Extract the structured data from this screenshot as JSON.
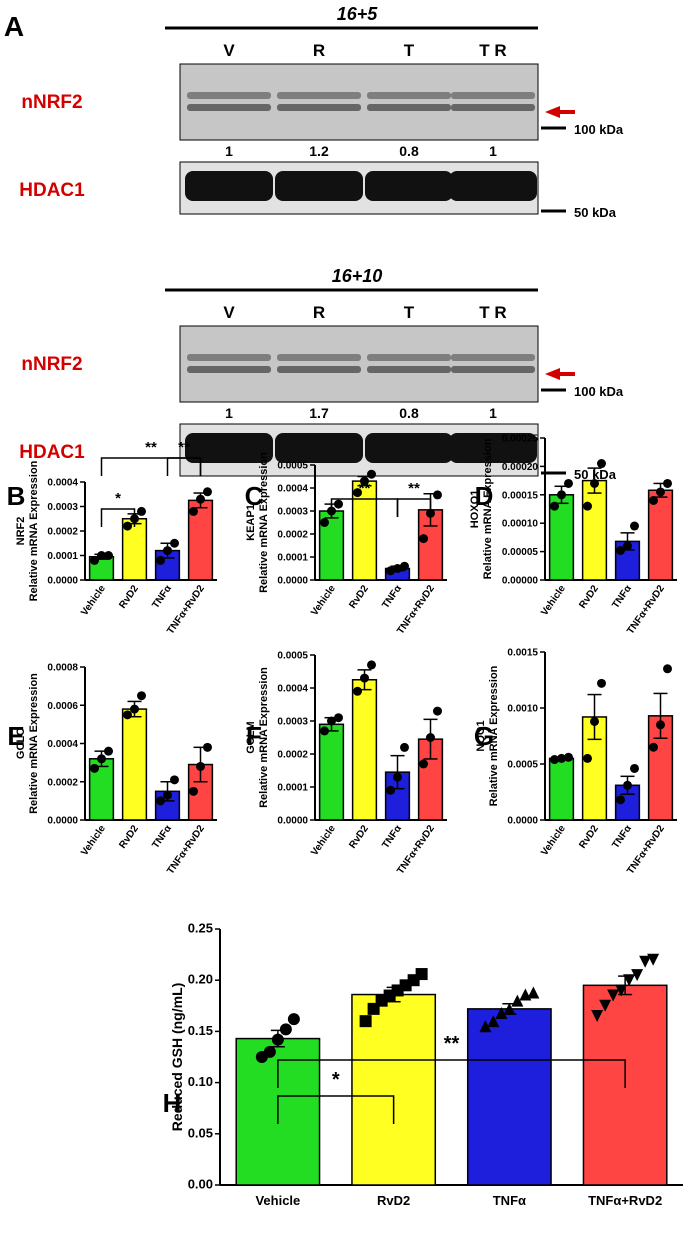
{
  "panel_a": {
    "letter": "A",
    "blocks": [
      {
        "condition": "16+5",
        "lanes": [
          "V",
          "R",
          "T",
          "T R"
        ],
        "target_label": "nNRF2",
        "ratios": [
          "1",
          "1.2",
          "0.8",
          "1"
        ],
        "loading_label": "HDAC1",
        "marker_target": "100 kDa",
        "marker_loading": "50 kDa"
      },
      {
        "condition": "16+10",
        "lanes": [
          "V",
          "R",
          "T",
          "T R"
        ],
        "target_label": "nNRF2",
        "ratios": [
          "1",
          "1.7",
          "0.8",
          "1"
        ],
        "loading_label": "HDAC1",
        "marker_target": "100 kDa",
        "marker_loading": "50 kDa"
      }
    ],
    "arrow_color": "#d40000"
  },
  "colors": {
    "label_red": "#d40000",
    "bar_colors": [
      "#22dd22",
      "#ffff22",
      "#1e1edd",
      "#ff4444"
    ]
  },
  "chart_data": [
    {
      "type": "bar",
      "panel": "B",
      "ylabel_gene": "NRF2",
      "ylabel": "Relative mRNA Expression",
      "categories": [
        "Vehicle",
        "RvD2",
        "TNFα",
        "TNFα+RvD2"
      ],
      "values": [
        9.5e-05,
        0.00025,
        0.00012,
        0.000325
      ],
      "errors": [
        1e-05,
        2e-05,
        3e-05,
        3e-05
      ],
      "points": [
        [
          8e-05,
          0.0001,
          0.0001
        ],
        [
          0.00022,
          0.00025,
          0.00028
        ],
        [
          8e-05,
          0.00012,
          0.00015
        ],
        [
          0.00028,
          0.00033,
          0.00036
        ]
      ],
      "ylim": [
        0,
        0.0004
      ],
      "ticks": [
        "0.0000",
        "0.0001",
        "0.0002",
        "0.0003",
        "0.0004"
      ],
      "significance": [
        {
          "from": 0,
          "to": 1,
          "label": "*"
        },
        {
          "from": 2,
          "to": 3,
          "label": "**"
        },
        {
          "from": 0,
          "to": 3,
          "label": "**"
        }
      ]
    },
    {
      "type": "bar",
      "panel": "C",
      "ylabel_gene": "KEAP1",
      "ylabel": "Relative mRNA Expression",
      "categories": [
        "Vehicle",
        "RvD2",
        "TNFα",
        "TNFα+RvD2"
      ],
      "values": [
        0.0003,
        0.00043,
        5e-05,
        0.000305
      ],
      "errors": [
        3e-05,
        2e-05,
        1e-05,
        7e-05
      ],
      "points": [
        [
          0.00025,
          0.0003,
          0.00033
        ],
        [
          0.00038,
          0.00043,
          0.00046
        ],
        [
          4e-05,
          5e-05,
          6e-05
        ],
        [
          0.00018,
          0.00029,
          0.00037
        ]
      ],
      "ylim": [
        0,
        0.0005
      ],
      "ticks": [
        "0.0000",
        "0.0001",
        "0.0002",
        "0.0003",
        "0.0004",
        "0.0005"
      ],
      "significance": [
        {
          "from": 0,
          "to": 2,
          "label": "**"
        },
        {
          "from": 2,
          "to": 3,
          "label": "**"
        }
      ]
    },
    {
      "type": "bar",
      "panel": "D",
      "ylabel_gene": "HOXO1",
      "ylabel": "Relative mRNA Expression",
      "categories": [
        "Vehicle",
        "RvD2",
        "TNFα",
        "TNFα+RvD2"
      ],
      "values": [
        0.00015,
        0.000175,
        6.8e-05,
        0.000158
      ],
      "errors": [
        1.5e-05,
        2.2e-05,
        1.5e-05,
        1.2e-05
      ],
      "points": [
        [
          0.00013,
          0.00015,
          0.00017
        ],
        [
          0.00013,
          0.00017,
          0.000205
        ],
        [
          5.2e-05,
          6e-05,
          9.5e-05
        ],
        [
          0.00014,
          0.000155,
          0.00017
        ]
      ],
      "ylim": [
        0,
        0.00025
      ],
      "ticks": [
        "0.00000",
        "0.00005",
        "0.00010",
        "0.00015",
        "0.00020",
        "0.00025"
      ],
      "significance": []
    },
    {
      "type": "bar",
      "panel": "E",
      "ylabel_gene": "GCLC",
      "ylabel": "Relative mRNA Expression",
      "categories": [
        "Vehicle",
        "RvD2",
        "TNFα",
        "TNFα+RvD2"
      ],
      "values": [
        0.00032,
        0.00058,
        0.00015,
        0.00029
      ],
      "errors": [
        4e-05,
        4e-05,
        5e-05,
        9e-05
      ],
      "points": [
        [
          0.00027,
          0.00032,
          0.00036
        ],
        [
          0.00055,
          0.00058,
          0.00065
        ],
        [
          0.0001,
          0.00013,
          0.00021
        ],
        [
          0.00015,
          0.00028,
          0.00038
        ]
      ],
      "ylim": [
        0,
        0.0008
      ],
      "ticks": [
        "0.0000",
        "0.0002",
        "0.0004",
        "0.0006",
        "0.0008"
      ],
      "significance": []
    },
    {
      "type": "bar",
      "panel": "F",
      "ylabel_gene": "GCLM",
      "ylabel": "Relative mRNA Expression",
      "categories": [
        "Vehicle",
        "RvD2",
        "TNFα",
        "TNFα+RvD2"
      ],
      "values": [
        0.00029,
        0.000425,
        0.000145,
        0.000245
      ],
      "errors": [
        2e-05,
        3e-05,
        5e-05,
        6e-05
      ],
      "points": [
        [
          0.00027,
          0.0003,
          0.00031
        ],
        [
          0.00039,
          0.00043,
          0.00047
        ],
        [
          9e-05,
          0.00013,
          0.00022
        ],
        [
          0.00017,
          0.00025,
          0.00033
        ]
      ],
      "ylim": [
        0,
        0.0005
      ],
      "ticks": [
        "0.0000",
        "0.0001",
        "0.0002",
        "0.0003",
        "0.0004",
        "0.0005"
      ],
      "significance": []
    },
    {
      "type": "bar",
      "panel": "G",
      "ylabel_gene": "NQO1",
      "ylabel": "Relative mRNA Expression",
      "categories": [
        "Vehicle",
        "RvD2",
        "TNFα",
        "TNFα+RvD2"
      ],
      "values": [
        0.00055,
        0.00092,
        0.00031,
        0.00093
      ],
      "errors": [
        1e-05,
        0.0002,
        8e-05,
        0.0002
      ],
      "points": [
        [
          0.00054,
          0.00055,
          0.00056
        ],
        [
          0.00055,
          0.00088,
          0.00122
        ],
        [
          0.00018,
          0.00031,
          0.00046
        ],
        [
          0.00065,
          0.00085,
          0.00135
        ]
      ],
      "ylim": [
        0,
        0.0015
      ],
      "ticks": [
        "0.0000",
        "0.0005",
        "0.0010",
        "0.0015"
      ],
      "significance": []
    },
    {
      "type": "bar",
      "panel": "H",
      "ylabel": "Reduced GSH (ng/mL)",
      "categories": [
        "Vehicle",
        "RvD2",
        "TNFα",
        "TNFα+RvD2"
      ],
      "values": [
        0.143,
        0.186,
        0.172,
        0.195
      ],
      "errors": [
        0.008,
        0.007,
        0.005,
        0.009
      ],
      "points": [
        [
          0.125,
          0.13,
          0.142,
          0.152,
          0.162
        ],
        [
          0.16,
          0.172,
          0.18,
          0.185,
          0.19,
          0.195,
          0.2,
          0.206
        ],
        [
          0.155,
          0.16,
          0.168,
          0.172,
          0.18,
          0.186,
          0.188
        ],
        [
          0.165,
          0.175,
          0.185,
          0.19,
          0.2,
          0.205,
          0.218,
          0.22
        ]
      ],
      "markers": [
        "circle",
        "square",
        "triangle-up",
        "triangle-down"
      ],
      "ylim": [
        0,
        0.25
      ],
      "ticks": [
        "0.00",
        "0.05",
        "0.10",
        "0.15",
        "0.20",
        "0.25"
      ],
      "significance": [
        {
          "from": 0,
          "to": 1,
          "label": "*"
        },
        {
          "from": 0,
          "to": 3,
          "label": "**"
        }
      ]
    }
  ]
}
